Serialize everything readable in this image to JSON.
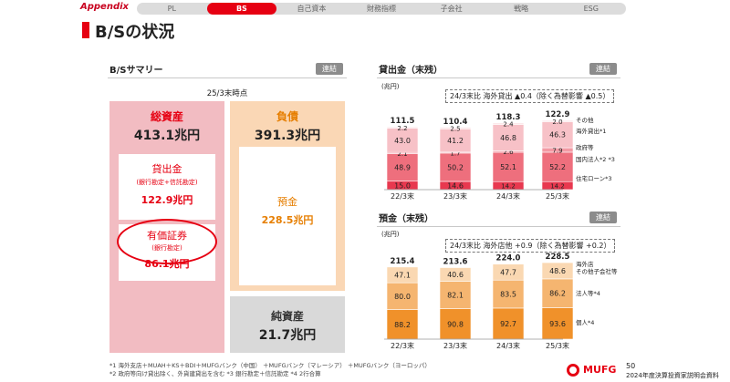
{
  "nav": {
    "appendix": "Appendix",
    "tabs": [
      "PL",
      "BS",
      "自己資本",
      "財務指標",
      "子会社",
      "戦略",
      "ESG"
    ],
    "active": "BS"
  },
  "page_title": "B/Sの状況",
  "summary": {
    "title": "B/Sサマリー",
    "badge": "連結",
    "as_of": "25/3末時点",
    "assets": {
      "label": "総資産",
      "value": "413.1兆円"
    },
    "loans": {
      "label": "貸出金",
      "sub": "(銀行勘定+信託勘定)",
      "value": "122.9兆円"
    },
    "securities": {
      "label": "有価証券",
      "sub": "(銀行勘定)",
      "value": "86.1兆円"
    },
    "liabilities": {
      "label": "負債",
      "value": "391.3兆円"
    },
    "deposits": {
      "label": "預金",
      "value": "228.5兆円"
    },
    "net_assets": {
      "label": "純資産",
      "value": "21.7兆円"
    }
  },
  "loans_chart": {
    "title": "貸出金（末残）",
    "badge": "連結",
    "unit": "(兆円)",
    "callout": "24/3末比  海外貸出 ▲0.4（除く為替影響 ▲0.5）",
    "legend": [
      "その他",
      "海外貸出*1",
      "政府等",
      "国内法人*2 *3",
      "住宅ローン*3"
    ]
  },
  "deposits_chart": {
    "title": "預金（末残）",
    "badge": "連結",
    "unit": "(兆円)",
    "callout": "24/3末比  海外店他 +0.9（除く為替影響 +0.2）",
    "legend": [
      "海外店",
      "その他子会社等",
      "法人等*4",
      "個人*4"
    ]
  },
  "chart_data": [
    {
      "type": "bar",
      "title": "貸出金（末残）",
      "categories": [
        "22/3末",
        "23/3末",
        "24/3末",
        "25/3末"
      ],
      "totals": [
        111.5,
        110.4,
        118.3,
        122.9
      ],
      "series": [
        {
          "name": "住宅ローン*3",
          "values": [
            15.0,
            14.6,
            14.2,
            14.2
          ],
          "color": "#e8384f"
        },
        {
          "name": "国内法人*2 *3",
          "values": [
            48.9,
            50.2,
            52.1,
            52.2
          ],
          "color": "#ee6f7d"
        },
        {
          "name": "政府等",
          "values": [
            2.1,
            1.7,
            2.6,
            7.9
          ],
          "color": "#f39aa4"
        },
        {
          "name": "海外貸出*1",
          "values": [
            43.0,
            41.2,
            46.8,
            46.3
          ],
          "color": "#f7c1c7"
        },
        {
          "name": "その他",
          "values": [
            2.2,
            2.5,
            2.4,
            2.0
          ],
          "color": "#fbe1e4"
        }
      ]
    },
    {
      "type": "bar",
      "title": "預金（末残）",
      "categories": [
        "22/3末",
        "23/3末",
        "24/3末",
        "25/3末"
      ],
      "totals": [
        215.4,
        213.6,
        224.0,
        228.5
      ],
      "series": [
        {
          "name": "個人*4",
          "values": [
            88.2,
            90.8,
            92.7,
            93.6
          ],
          "color": "#f0912a"
        },
        {
          "name": "法人等*4",
          "values": [
            80.0,
            82.1,
            83.5,
            86.2
          ],
          "color": "#f5b570"
        },
        {
          "name": "海外店 その他子会社等",
          "values": [
            47.1,
            40.6,
            47.7,
            48.6
          ],
          "color": "#fad8b2"
        }
      ]
    }
  ],
  "footnotes": [
    "*1  海外支店＋MUAH＋KS＋BDI＋MUFGバンク（中国） ＋MUFGバンク（マレーシア） ＋MUFGバンク（ヨーロッパ）",
    "*2  政府等向け貸出除く、外貨建貸出を含む   *3  銀行勘定＋信託勘定   *4  2行合算"
  ],
  "footer": {
    "logo": "MUFG",
    "page": "50",
    "doc": "2024年度決算投資家説明会資料"
  },
  "colors": {
    "brand_red": "#e60012",
    "assets_bg": "#f2bcc2",
    "liab_bg": "#fad7b5",
    "net_bg": "#d9d9d9"
  }
}
